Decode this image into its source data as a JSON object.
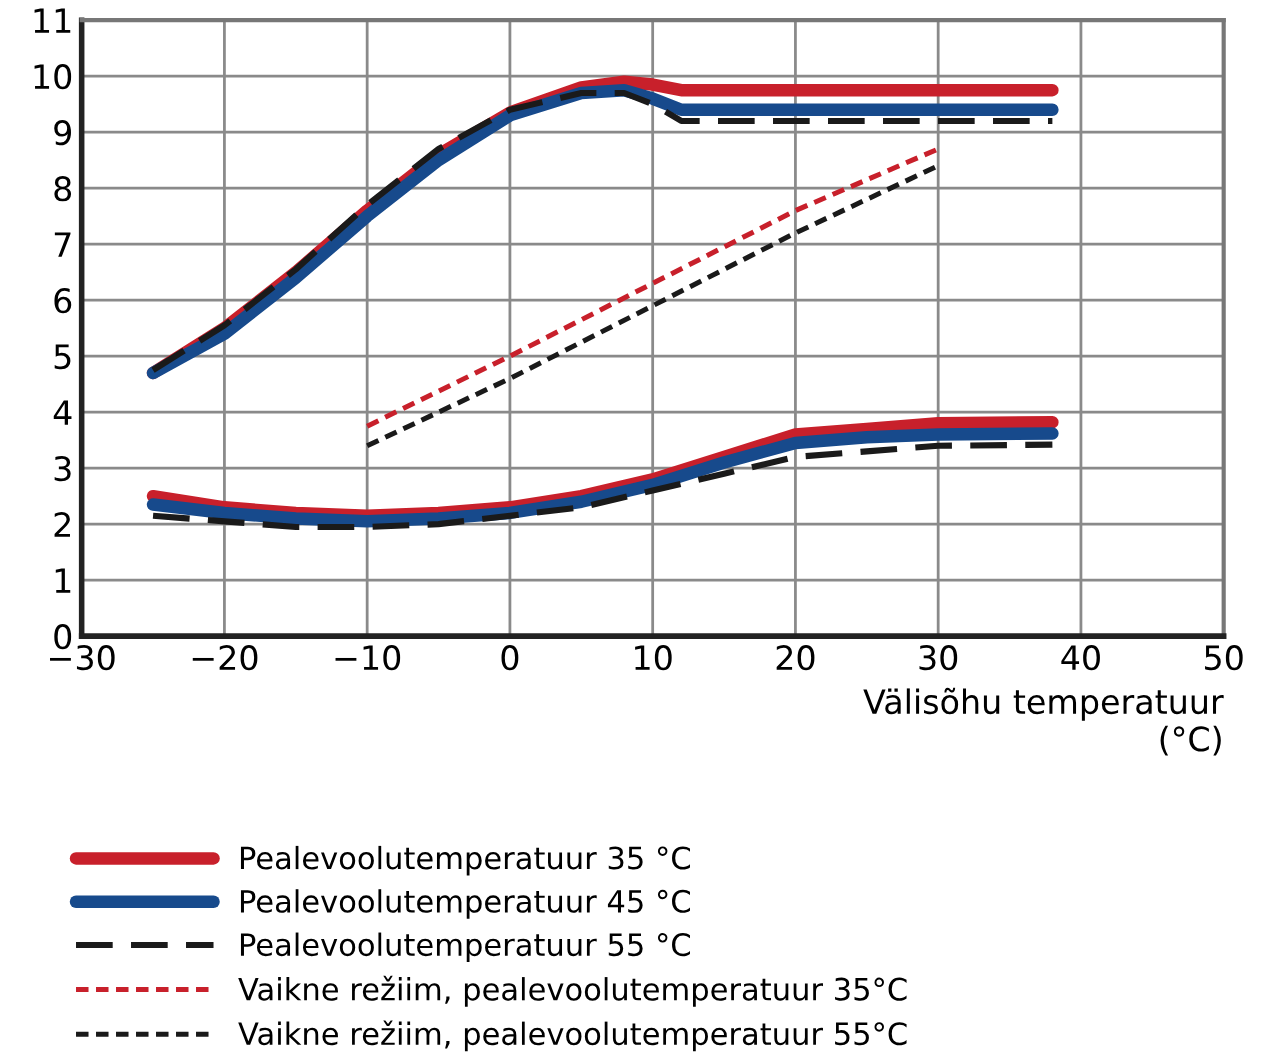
{
  "chart_data": {
    "type": "line",
    "xlabel": "Välisõhu temperatuur\n(°C)",
    "xlim": [
      -30,
      50
    ],
    "xticks": [
      {
        "value": -30,
        "label": "−30"
      },
      {
        "value": -20,
        "label": "−20"
      },
      {
        "value": -10,
        "label": "−10"
      },
      0,
      10,
      20,
      30,
      40,
      50
    ],
    "ylim": [
      0,
      11
    ],
    "yticks": [
      0,
      1,
      2,
      3,
      4,
      5,
      6,
      7,
      8,
      9,
      10,
      11
    ],
    "grid": true,
    "legend": "bottom",
    "marker": "none",
    "series": [
      {
        "name": "Pealevoolutemperatuur 35 °C",
        "color": "#c8202b",
        "line_style": "solid",
        "x": [
          -25,
          -20,
          -15,
          -10,
          -5,
          0,
          5,
          8,
          10,
          12,
          38
        ],
        "values": [
          4.7,
          5.5,
          6.5,
          7.6,
          8.6,
          9.35,
          9.8,
          9.9,
          9.85,
          9.75,
          9.75
        ]
      },
      {
        "color": "#c8202b",
        "line_style": "solid",
        "x": [
          -25,
          -20,
          -15,
          -10,
          -5,
          0,
          5,
          10,
          15,
          20,
          25,
          30,
          38
        ],
        "values": [
          2.5,
          2.3,
          2.2,
          2.15,
          2.2,
          2.3,
          2.5,
          2.8,
          3.2,
          3.6,
          3.7,
          3.8,
          3.82
        ]
      },
      {
        "name": "Pealevoolutemperatuur 45 °C",
        "color": "#174a8c",
        "line_style": "solid",
        "x": [
          -25,
          -20,
          -15,
          -10,
          -5,
          0,
          5,
          8,
          10,
          12,
          38
        ],
        "values": [
          4.7,
          5.4,
          6.4,
          7.5,
          8.5,
          9.3,
          9.7,
          9.75,
          9.6,
          9.4,
          9.4
        ]
      },
      {
        "color": "#174a8c",
        "line_style": "solid",
        "x": [
          -25,
          -20,
          -15,
          -10,
          -5,
          0,
          5,
          10,
          15,
          20,
          25,
          30,
          38
        ],
        "values": [
          2.35,
          2.2,
          2.1,
          2.05,
          2.1,
          2.2,
          2.4,
          2.7,
          3.1,
          3.45,
          3.55,
          3.6,
          3.62
        ]
      },
      {
        "name": "Pealevoolutemperatuur 55 °C",
        "color": "#1a1a1a",
        "line_style": "dashed",
        "x": [
          -25,
          -20,
          -15,
          -10,
          -5,
          0,
          5,
          8,
          10,
          12,
          38
        ],
        "values": [
          4.75,
          5.55,
          6.55,
          7.7,
          8.7,
          9.4,
          9.7,
          9.7,
          9.5,
          9.2,
          9.2
        ]
      },
      {
        "color": "#1a1a1a",
        "line_style": "dashed",
        "x": [
          -25,
          -20,
          -15,
          -10,
          -5,
          0,
          5,
          10,
          15,
          20,
          25,
          30,
          38
        ],
        "values": [
          2.15,
          2.05,
          1.95,
          1.95,
          2.0,
          2.15,
          2.3,
          2.6,
          2.9,
          3.2,
          3.3,
          3.4,
          3.42
        ]
      },
      {
        "name": "Vaikne režiim, pealevoolutemperatuur 35°C",
        "color": "#c8202b",
        "line_style": "dotted",
        "x": [
          -10,
          0,
          10,
          20,
          30
        ],
        "values": [
          3.75,
          5.0,
          6.3,
          7.6,
          8.7
        ]
      },
      {
        "name": "Vaikne režiim, pealevoolutemperatuur 55°C",
        "color": "#1a1a1a",
        "line_style": "dotted",
        "x": [
          -10,
          0,
          10,
          20,
          30
        ],
        "values": [
          3.4,
          4.6,
          5.9,
          7.2,
          8.4
        ]
      }
    ]
  }
}
